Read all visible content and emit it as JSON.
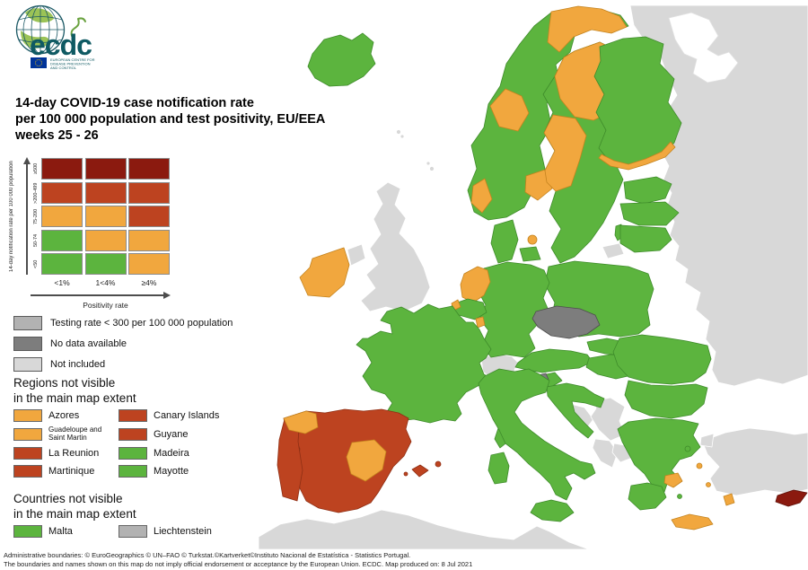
{
  "logo": {
    "wordmark": "ecdc",
    "org_lines": [
      "EUROPEAN CENTRE FOR",
      "DISEASE PREVENTION",
      "AND CONTROL"
    ]
  },
  "title": {
    "line1": "14-day COVID-19 case notification rate",
    "line2": "per 100 000 population and test positivity, EU/EEA",
    "line3": "weeks 25 - 26"
  },
  "colors": {
    "green": "#5cb43e",
    "orange": "#f1a73e",
    "red": "#bd4320",
    "darkred": "#8b1a0f",
    "nodata": "#7d7d7d",
    "testing": "#b2b2b2",
    "notincluded": "#d8d8d8",
    "sea": "#ffffff"
  },
  "strokes": {
    "green": "#3f8c2b",
    "orange": "#c4831e",
    "red": "#8f2f14",
    "darkred": "#5e1008",
    "nodata": "#4d4d4d",
    "testing": "#8c8c8c",
    "notincluded": "#ffffff",
    "sea": "#e0e0e0"
  },
  "matrix": {
    "y_axis_label": "14-day notification rate per 100 000 population",
    "x_axis_label": "Positivity rate",
    "row_labels": [
      "≥500",
      ">200-499",
      "75-200",
      "50-74",
      "<50"
    ],
    "col_labels": [
      "<1%",
      "1<4%",
      "≥4%"
    ],
    "cells": [
      [
        "darkred",
        "darkred",
        "darkred"
      ],
      [
        "red",
        "red",
        "red"
      ],
      [
        "orange",
        "orange",
        "red"
      ],
      [
        "green",
        "orange",
        "orange"
      ],
      [
        "green",
        "green",
        "orange"
      ]
    ]
  },
  "grey_legend": [
    {
      "category": "testing",
      "label": "Testing rate < 300 per 100 000 population"
    },
    {
      "category": "nodata",
      "label": "No data available"
    },
    {
      "category": "notincluded",
      "label": "Not included"
    }
  ],
  "regions_section": {
    "heading_line1": "Regions not visible",
    "heading_line2": "in the main map extent",
    "items": [
      {
        "label": "Azores",
        "category": "orange",
        "small": false
      },
      {
        "label": "Canary Islands",
        "category": "red",
        "small": false
      },
      {
        "label": "Guadeloupe and Saint Martin",
        "category": "orange",
        "small": true
      },
      {
        "label": "Guyane",
        "category": "red",
        "small": false
      },
      {
        "label": "La Reunion",
        "category": "red",
        "small": false
      },
      {
        "label": "Madeira",
        "category": "green",
        "small": false
      },
      {
        "label": "Martinique",
        "category": "red",
        "small": false
      },
      {
        "label": "Mayotte",
        "category": "green",
        "small": false
      }
    ]
  },
  "countries_section": {
    "heading_line1": "Countries not visible",
    "heading_line2": "in the main map extent",
    "items": [
      {
        "label": "Malta",
        "category": "green",
        "small": false
      },
      {
        "label": "Liechtenstein",
        "category": "testing",
        "small": false
      }
    ]
  },
  "footer": {
    "line1": "Administrative boundaries: © EuroGeographics © UN–FAO © Turkstat.©Kartverket©Instituto Nacional de Estatística - Statistics Portugal.",
    "line2": "The boundaries and names shown on this map do not imply official endorsement or acceptance by the European Union. ECDC. Map produced on: 8 Jul 2021"
  },
  "map": {
    "countries": {
      "russia_east": "notincluded",
      "white_sea": "sea",
      "north_africa": "notincluded",
      "turkey": "notincluded",
      "istanbul": "notincluded",
      "uk": "notincluded",
      "northern_ireland": "notincluded",
      "ireland": "orange",
      "faroe_a": "notincluded",
      "faroe_b": "notincluded",
      "shetland_a": "notincluded",
      "shetland_b": "notincluded",
      "iceland": "green",
      "norway": "green",
      "norway_finnmark": "orange",
      "norway_central": "orange",
      "norway_oslo": "orange",
      "norway_southwest": "orange",
      "sweden": "green",
      "sweden_north": "orange",
      "sweden_central": "orange",
      "gotland": "green",
      "finland": "green",
      "finland_south": "orange",
      "estonia": "green",
      "latvia": "green",
      "lithuania": "green",
      "kaliningrad": "notincluded",
      "denmark": "green",
      "denmark_islands": "green",
      "copenhagen": "orange",
      "poland": "green",
      "germany": "green",
      "netherlands": "orange",
      "belgium": "green",
      "belgium_coast": "orange",
      "luxembourg": "orange",
      "czechia": "nodata",
      "austria": "green",
      "switzerland": "notincluded",
      "slovakia": "green",
      "hungary": "green",
      "slovenia": "green",
      "slovenia_nw": "nodata",
      "croatia": "green",
      "bosnia": "notincluded",
      "serbia": "notincluded",
      "montenegro_albania": "notincluded",
      "north_macedonia": "notincluded",
      "romania": "green",
      "bulgaria": "green",
      "greece": "green",
      "peloponnese": "green",
      "attica": "orange",
      "crete": "orange",
      "rhodes": "orange",
      "aegean_green_a": "green",
      "aegean_orange_a": "orange",
      "aegean_green_b": "green",
      "aegean_orange_b": "orange",
      "cyprus": "darkred",
      "italy": "green",
      "sicily": "green",
      "sardinia": "green",
      "corsica": "green",
      "france": "green",
      "spain": "red",
      "portugal": "red",
      "spain_galicia": "orange",
      "spain_castilla": "orange",
      "mallorca": "red",
      "ibiza": "red",
      "menorca": "red"
    }
  }
}
